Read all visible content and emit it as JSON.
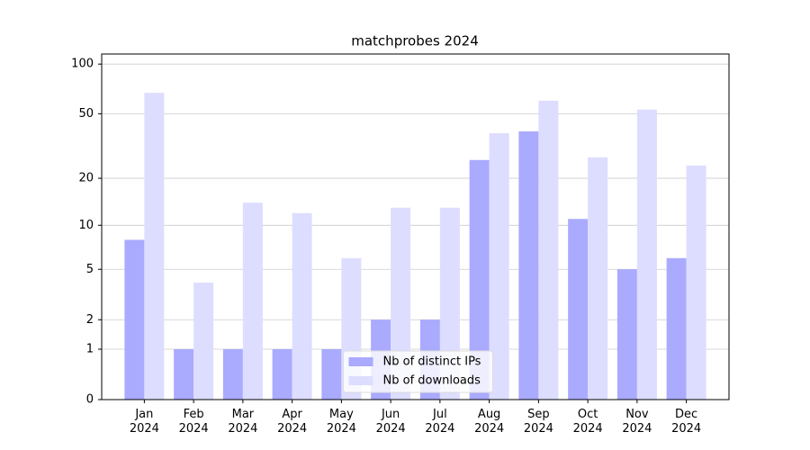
{
  "chart_data": {
    "type": "bar",
    "title": "matchprobes 2024",
    "categories": [
      "Jan\n2024",
      "Feb\n2024",
      "Mar\n2024",
      "Apr\n2024",
      "May\n2024",
      "Jun\n2024",
      "Jul\n2024",
      "Aug\n2024",
      "Sep\n2024",
      "Oct\n2024",
      "Nov\n2024",
      "Dec\n2024"
    ],
    "series": [
      {
        "name": "Nb of distinct IPs",
        "color": "#aaaaff",
        "values": [
          8,
          1,
          1,
          1,
          1,
          2,
          2,
          26,
          39,
          11,
          5,
          6
        ]
      },
      {
        "name": "Nb of downloads",
        "color": "#ddddff",
        "values": [
          67,
          4,
          14,
          12,
          6,
          13,
          13,
          38,
          60,
          27,
          53,
          24
        ]
      }
    ],
    "yscale": "log1p",
    "ylim": [
      0,
      115
    ],
    "yticks": [
      0,
      1,
      2,
      5,
      10,
      20,
      50,
      100
    ],
    "grid": true,
    "legend": "lower center"
  }
}
